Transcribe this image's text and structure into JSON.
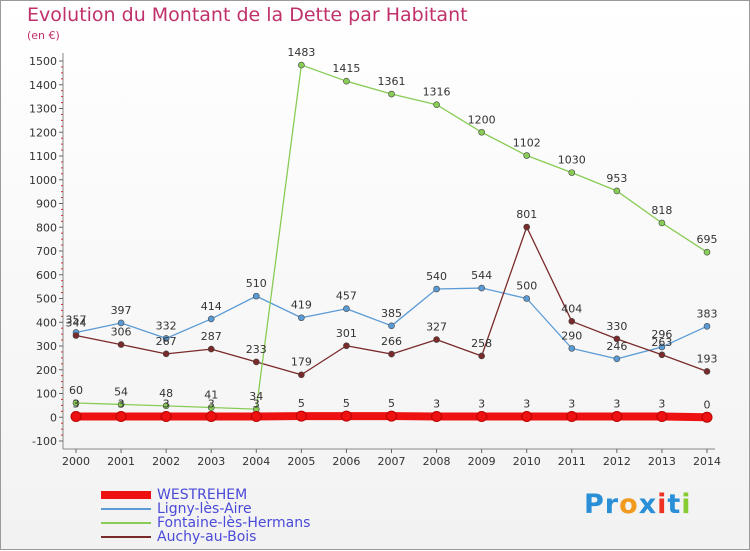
{
  "title": "Evolution du Montant de la Dette par Habitant",
  "subtitle": "(en €)",
  "chart_data": {
    "type": "line",
    "x": [
      "2000",
      "2001",
      "2002",
      "2003",
      "2004",
      "2005",
      "2006",
      "2007",
      "2008",
      "2009",
      "2010",
      "2011",
      "2012",
      "2013",
      "2014"
    ],
    "ylim": [
      -100,
      1500
    ],
    "yticks": [
      -100,
      0,
      100,
      200,
      300,
      400,
      500,
      600,
      700,
      800,
      900,
      1000,
      1100,
      1200,
      1300,
      1400,
      1500
    ],
    "grid": false,
    "legend_position": "bottom-left",
    "series": [
      {
        "name": "WESTREHEM",
        "color": "#ee1111",
        "values": [
          3,
          3,
          3,
          3,
          3,
          5,
          5,
          5,
          3,
          3,
          3,
          3,
          3,
          3,
          0
        ],
        "labels": [
          "3",
          "3",
          "3",
          "3",
          "3",
          "5",
          "5",
          "5",
          "3",
          "3",
          "3",
          "3",
          "3",
          "3",
          "0"
        ]
      },
      {
        "name": "Ligny-lès-Aire",
        "color": "#5b9bd5",
        "values": [
          357,
          397,
          332,
          414,
          510,
          419,
          457,
          385,
          540,
          544,
          500,
          290,
          246,
          296,
          383
        ],
        "labels": [
          "357",
          "397",
          "332",
          "414",
          "510",
          "419",
          "457",
          "385",
          "540",
          "544",
          "500",
          "290",
          "246",
          "296",
          "383"
        ]
      },
      {
        "name": "Fontaine-lès-Hermans",
        "color": "#88cc55",
        "values": [
          60,
          54,
          48,
          41,
          34,
          1483,
          1415,
          1361,
          1316,
          1200,
          1102,
          1030,
          953,
          818,
          695
        ],
        "labels": [
          "60",
          "54",
          "48",
          "41",
          "34",
          "1483",
          "1415",
          "1361",
          "1316",
          "1200",
          "1102",
          "1030",
          "953",
          "818",
          "695"
        ]
      },
      {
        "name": "Auchy-au-Bois",
        "color": "#7a2a2a",
        "values": [
          344,
          306,
          267,
          287,
          233,
          179,
          301,
          266,
          327,
          258,
          801,
          404,
          330,
          263,
          193
        ],
        "labels": [
          "344",
          "306",
          "267",
          "287",
          "233",
          "179",
          "301",
          "266",
          "327",
          "258",
          "801",
          "404",
          "330",
          "263",
          "193"
        ]
      }
    ]
  },
  "logo": {
    "text": "Proxiti",
    "colors": [
      "#2a8fd6",
      "#2a8fd6",
      "#f29a1d",
      "#2a8fd6",
      "#ee3322",
      "#2a8fd6",
      "#88cc33"
    ]
  }
}
